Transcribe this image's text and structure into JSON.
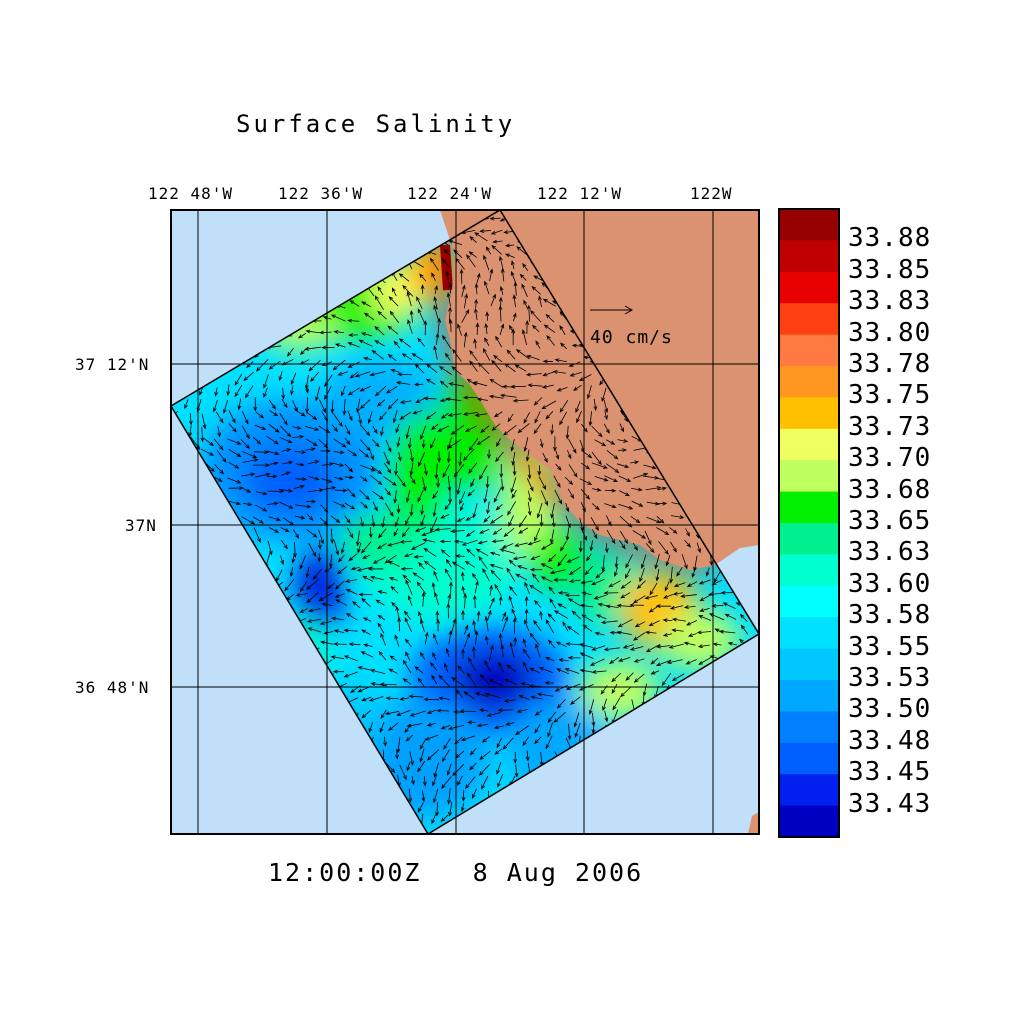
{
  "title": "Surface Salinity",
  "timestamp": "12:00:00Z   8 Aug 2006",
  "map": {
    "lon_labels": [
      "122 48'W",
      "122 36'W",
      "122 24'W",
      "122 12'W",
      "122W"
    ],
    "lat_labels": [
      "37 12'N",
      "37N",
      "36 48'N"
    ],
    "vector_scale_label": "40 cm/s",
    "colors": {
      "ocean": "#c0e0fa",
      "land": "#da9270",
      "grid": "#000000"
    }
  },
  "colorbar": {
    "labels": [
      "33.88",
      "33.85",
      "33.83",
      "33.80",
      "33.78",
      "33.75",
      "33.73",
      "33.70",
      "33.68",
      "33.65",
      "33.63",
      "33.60",
      "33.58",
      "33.55",
      "33.53",
      "33.50",
      "33.48",
      "33.45",
      "33.43"
    ],
    "colors": [
      "#960000",
      "#c00000",
      "#e60000",
      "#ff4010",
      "#ff7a40",
      "#ff9620",
      "#ffc000",
      "#f0ff60",
      "#c0ff60",
      "#00f000",
      "#00f090",
      "#00ffd0",
      "#00ffff",
      "#00e0ff",
      "#00c8ff",
      "#00a8ff",
      "#0080ff",
      "#0060ff",
      "#0020f0",
      "#0000c0"
    ]
  }
}
